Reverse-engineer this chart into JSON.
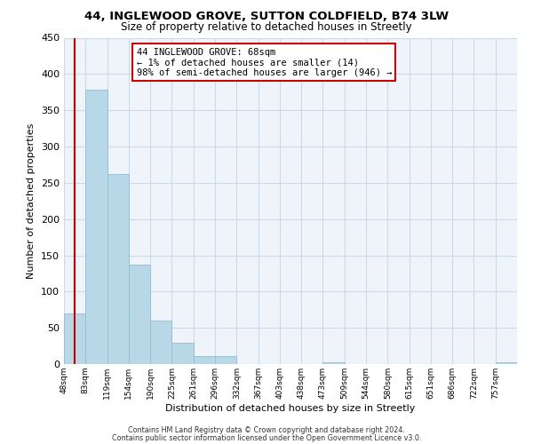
{
  "title": "44, INGLEWOOD GROVE, SUTTON COLDFIELD, B74 3LW",
  "subtitle": "Size of property relative to detached houses in Streetly",
  "xlabel": "Distribution of detached houses by size in Streetly",
  "ylabel": "Number of detached properties",
  "bin_labels": [
    "48sqm",
    "83sqm",
    "119sqm",
    "154sqm",
    "190sqm",
    "225sqm",
    "261sqm",
    "296sqm",
    "332sqm",
    "367sqm",
    "403sqm",
    "438sqm",
    "473sqm",
    "509sqm",
    "544sqm",
    "580sqm",
    "615sqm",
    "651sqm",
    "686sqm",
    "722sqm",
    "757sqm"
  ],
  "bar_values": [
    70,
    378,
    262,
    137,
    60,
    29,
    11,
    11,
    0,
    0,
    0,
    0,
    2,
    0,
    0,
    0,
    0,
    0,
    0,
    0,
    2
  ],
  "bar_color": "#b8d8e8",
  "bar_edge_color": "#93bcd4",
  "highlight_bar_index": 0,
  "red_line_x": 0.5,
  "annotation_title": "44 INGLEWOOD GROVE: 68sqm",
  "annotation_line1": "← 1% of detached houses are smaller (14)",
  "annotation_line2": "98% of semi-detached houses are larger (946) →",
  "annotation_box_color": "#ffffff",
  "annotation_box_edge": "#cc0000",
  "marker_line_color": "#cc0000",
  "ylim": [
    0,
    450
  ],
  "yticks": [
    0,
    50,
    100,
    150,
    200,
    250,
    300,
    350,
    400,
    450
  ],
  "footer1": "Contains HM Land Registry data © Crown copyright and database right 2024.",
  "footer2": "Contains public sector information licensed under the Open Government Licence v3.0.",
  "grid_color": "#ccd9e8",
  "bg_color": "#eef4fa"
}
